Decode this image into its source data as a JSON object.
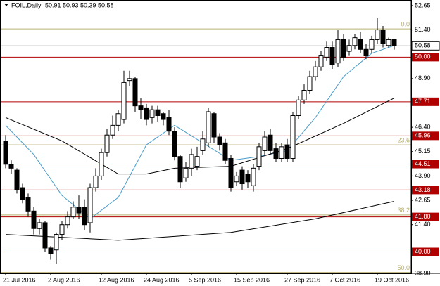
{
  "header": {
    "symbol": "FOIL,Daily",
    "open": 50.91,
    "high": 50.93,
    "low": 50.39,
    "close": 50.58
  },
  "chart_data": {
    "type": "candlestick",
    "categories": [
      "21 Jul 2016",
      null,
      null,
      null,
      null,
      null,
      null,
      null,
      "2 Aug 2016",
      null,
      null,
      null,
      null,
      null,
      null,
      null,
      null,
      "12 Aug 2016",
      null,
      null,
      null,
      null,
      null,
      null,
      null,
      "24 Aug 2016",
      null,
      null,
      null,
      null,
      null,
      null,
      null,
      "5 Sep 2016",
      null,
      null,
      null,
      null,
      null,
      null,
      null,
      "15 Sep 2016",
      null,
      null,
      null,
      null,
      null,
      null,
      null,
      null,
      "27 Sep 2016",
      null,
      null,
      null,
      null,
      null,
      null,
      null,
      "7 Oct 2016",
      null,
      null,
      null,
      null,
      null,
      null,
      null,
      "19 Oct 2016",
      null,
      null,
      null
    ],
    "open": [
      45.7,
      44.5,
      44.2,
      43.3,
      42.8,
      42.1,
      41.2,
      41.5,
      40.2,
      40.1,
      40.9,
      41.4,
      41.8,
      42.3,
      42.3,
      41.5,
      43.3,
      43.9,
      45.1,
      46.0,
      46.5,
      46.8,
      48.8,
      48.9,
      47.5,
      47.4,
      46.9,
      47.3,
      47.1,
      46.9,
      46.2,
      44.9,
      43.8,
      44.3,
      44.4,
      45.2,
      45.6,
      47.1,
      45.9,
      45.6,
      44.8,
      43.6,
      44.2,
      44.0,
      43.4,
      44.4,
      45.2,
      46.0,
      45.3,
      44.8,
      45.5,
      44.8,
      47.0,
      47.8,
      48.3,
      49.0,
      49.5,
      50.0,
      50.5,
      49.7,
      50.9,
      50.3,
      50.6,
      50.9,
      50.4,
      50.4,
      50.9,
      51.4,
      50.6,
      50.91
    ],
    "high": [
      46.0,
      44.7,
      44.3,
      43.5,
      43.0,
      42.3,
      41.7,
      41.6,
      40.3,
      41.0,
      41.6,
      42.1,
      42.6,
      42.9,
      42.7,
      43.5,
      44.3,
      45.3,
      46.3,
      47.0,
      47.3,
      49.3,
      49.3,
      49.0,
      47.9,
      47.6,
      47.5,
      47.5,
      47.2,
      47.3,
      46.4,
      45.0,
      44.6,
      45.3,
      45.4,
      46.2,
      47.4,
      47.2,
      46.1,
      45.8,
      45.0,
      44.1,
      44.4,
      44.2,
      44.5,
      45.6,
      46.2,
      46.3,
      45.6,
      45.6,
      45.8,
      47.2,
      48.0,
      48.6,
      49.3,
      49.8,
      50.3,
      50.8,
      50.8,
      51.4,
      51.2,
      50.9,
      51.2,
      51.3,
      50.7,
      51.1,
      52.0,
      51.6,
      51.0,
      50.93
    ],
    "low": [
      44.3,
      44.0,
      43.0,
      42.5,
      41.8,
      40.9,
      40.9,
      40.0,
      39.6,
      39.4,
      40.6,
      41.2,
      41.7,
      41.7,
      41.1,
      41.0,
      43.1,
      43.7,
      44.9,
      45.8,
      46.2,
      46.6,
      48.5,
      47.2,
      46.8,
      46.5,
      46.6,
      46.7,
      46.5,
      46.0,
      44.7,
      43.3,
      43.6,
      43.9,
      44.2,
      45.0,
      45.4,
      45.6,
      45.2,
      44.5,
      43.1,
      43.4,
      43.2,
      43.3,
      43.1,
      44.2,
      45.0,
      45.0,
      44.6,
      44.6,
      44.6,
      44.6,
      46.8,
      47.6,
      48.1,
      48.8,
      49.3,
      49.8,
      49.4,
      49.5,
      49.8,
      50.1,
      50.4,
      50.2,
      49.9,
      50.2,
      50.7,
      50.5,
      50.5,
      50.39
    ],
    "close": [
      44.5,
      44.3,
      43.2,
      42.7,
      42.1,
      41.2,
      41.5,
      40.2,
      39.9,
      40.9,
      41.4,
      41.8,
      42.3,
      42.0,
      41.4,
      43.3,
      43.9,
      45.1,
      46.0,
      46.5,
      47.1,
      48.7,
      48.9,
      47.5,
      47.3,
      46.8,
      47.3,
      47.0,
      46.8,
      46.2,
      44.9,
      43.6,
      44.3,
      45.0,
      44.9,
      45.8,
      47.2,
      45.9,
      45.5,
      44.7,
      43.3,
      43.9,
      43.5,
      43.6,
      44.3,
      45.4,
      45.9,
      45.2,
      44.8,
      45.4,
      44.8,
      47.0,
      47.8,
      48.3,
      49.0,
      49.5,
      50.1,
      50.5,
      49.6,
      50.9,
      50.0,
      50.6,
      51.0,
      50.4,
      50.1,
      50.9,
      51.4,
      50.7,
      50.9,
      50.58
    ],
    "lines": [
      {
        "color": "#4a9cc8",
        "x": [
          0,
          5,
          10,
          15,
          20,
          25,
          30,
          35,
          40,
          45,
          50,
          55,
          60,
          65,
          69
        ],
        "values": [
          46.5,
          45.0,
          42.9,
          41.7,
          42.8,
          45.5,
          46.5,
          45.6,
          44.7,
          44.9,
          45.2,
          46.9,
          49.0,
          50.2,
          50.6
        ]
      },
      {
        "color": "#000000",
        "x": [
          0,
          10,
          20,
          25,
          30,
          40,
          50,
          60,
          69
        ],
        "values": [
          46.9,
          45.7,
          44.0,
          44.0,
          44.3,
          44.4,
          45.3,
          46.6,
          47.9
        ]
      },
      {
        "color": "#000000",
        "x": [
          0,
          20,
          40,
          55,
          69
        ],
        "values": [
          40.9,
          40.6,
          41.0,
          41.7,
          42.6
        ]
      }
    ],
    "ylim": [
      38.9,
      52.9
    ],
    "yticks": [
      52.65,
      {
        "value": 51.4,
        "label": "51.40"
      },
      {
        "value": 48.9,
        "label": "48.90"
      },
      {
        "value": 46.4,
        "label": "46.40"
      },
      45.15,
      {
        "value": 43.9,
        "label": "43.90"
      },
      42.65,
      {
        "value": 41.4,
        "label": "41.40"
      },
      {
        "value": 38.9,
        "label": "38.90"
      }
    ],
    "levels": [
      {
        "value": 50,
        "label": "50.00"
      },
      {
        "value": 47.71,
        "label": "47.71"
      },
      {
        "value": 45.96,
        "label": "45.96"
      },
      {
        "value": 44.51,
        "label": "44.51"
      },
      {
        "value": 43.18,
        "label": "43.18"
      },
      {
        "value": 41.8,
        "label": "41.80"
      },
      {
        "value": 40,
        "label": "40.00"
      }
    ],
    "level_color": "#b00000",
    "fib_levels": [
      {
        "value": 51.45,
        "label": "0.0"
      },
      {
        "value": 45.5,
        "label": "23.6"
      },
      {
        "value": 41.9,
        "label": "38.2"
      },
      {
        "value": 38.95,
        "label": "50.0"
      }
    ],
    "fib_color": "#b8b070",
    "current_price": 50.58
  }
}
